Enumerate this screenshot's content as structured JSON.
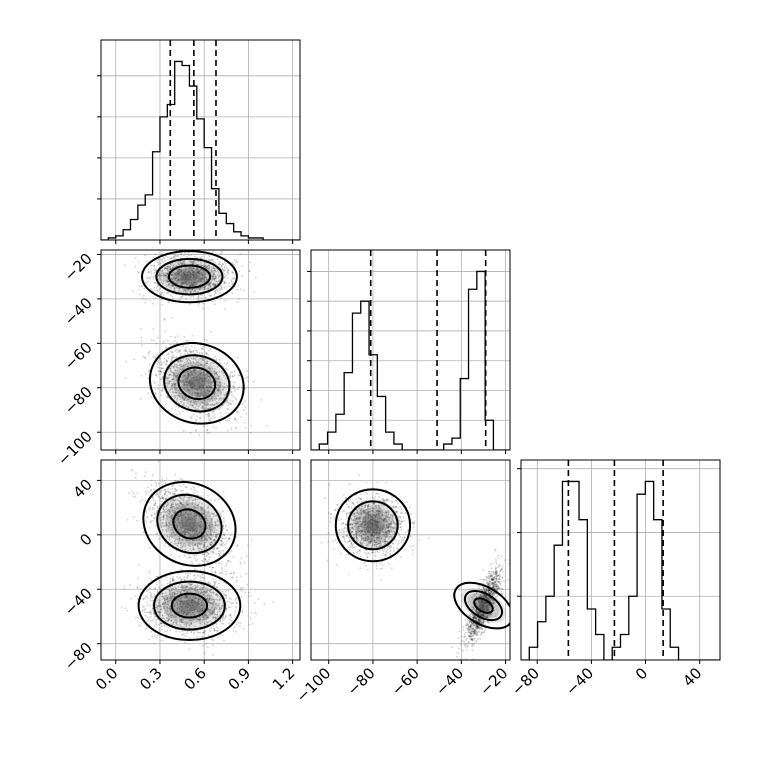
{
  "chart_data": {
    "type": "corner",
    "title": "",
    "grid": true,
    "parameters": [
      {
        "axis_label": "",
        "range": [
          -0.1,
          1.25
        ],
        "ticks": [
          0.0,
          0.3,
          0.6,
          0.9,
          1.2
        ],
        "tick_labels": [
          "0.0",
          "0.3",
          "0.6",
          "0.9",
          "1.2"
        ],
        "quantiles": [
          0.37,
          0.53,
          0.68
        ],
        "histogram": {
          "bin_start": -0.1,
          "bin_width": 0.05,
          "counts": [
            0,
            1,
            2,
            5,
            10,
            17,
            22,
            43,
            60,
            66,
            87,
            85,
            75,
            59,
            45,
            25,
            13,
            8,
            4,
            2,
            1,
            1,
            0,
            0,
            0,
            0,
            0
          ]
        }
      },
      {
        "axis_label": "",
        "range": [
          -108,
          -18
        ],
        "ticks": [
          -100,
          -80,
          -60,
          -40,
          -20
        ],
        "tick_labels": [
          "−100",
          "−80",
          "−60",
          "−40",
          "−20"
        ],
        "quantiles": [
          -81,
          -51,
          -29
        ],
        "histogram": {
          "bin_start": -108,
          "bin_width": 3.75,
          "counts": [
            0,
            1,
            3,
            6,
            13,
            23,
            25,
            16,
            9,
            3,
            1,
            0,
            0,
            0,
            0,
            0,
            1,
            2,
            12,
            27,
            30,
            5,
            0,
            0
          ]
        }
      },
      {
        "axis_label": "",
        "range": [
          -92,
          55
        ],
        "ticks": [
          -80,
          -40,
          0,
          40
        ],
        "tick_labels": [
          "−80",
          "−40",
          "0",
          "40"
        ],
        "quantiles": [
          -57,
          -23,
          13
        ],
        "histogram": {
          "bin_start": -92,
          "bin_width": 6.125,
          "counts": [
            0,
            1,
            3,
            5,
            9,
            14,
            14,
            11,
            4,
            2,
            0,
            1,
            2,
            5,
            13,
            14,
            11,
            4,
            1,
            0,
            0,
            0,
            0,
            0
          ]
        }
      }
    ],
    "pairs": [
      {
        "x_param": 0,
        "y_param": 1,
        "clusters": [
          {
            "mean": [
              0.5,
              -30
            ],
            "sd": [
              0.14,
              5
            ],
            "rho": 0.0,
            "contour_scale": [
              1.0,
              1.6,
              2.3
            ]
          },
          {
            "mean": [
              0.55,
              -78
            ],
            "sd": [
              0.14,
              8
            ],
            "rho": -0.35,
            "contour_scale": [
              0.9,
              1.6,
              2.3
            ]
          }
        ]
      },
      {
        "x_param": 0,
        "y_param": 2,
        "clusters": [
          {
            "mean": [
              0.5,
              8
            ],
            "sd": [
              0.14,
              14
            ],
            "rho": -0.55,
            "contour_scale": [
              0.8,
              1.6,
              2.3
            ]
          },
          {
            "mean": [
              0.5,
              -52
            ],
            "sd": [
              0.15,
              11
            ],
            "rho": 0.0,
            "contour_scale": [
              0.8,
              1.6,
              2.3
            ]
          }
        ]
      },
      {
        "x_param": 1,
        "y_param": 2,
        "clusters": [
          {
            "mean": [
              -80,
              7
            ],
            "sd": [
              7,
              11
            ],
            "rho": 0.0,
            "contour_scale": [
              1.6,
              2.4
            ]
          },
          {
            "mean": [
              -30,
              -52
            ],
            "sd": [
              3.8,
              13
            ],
            "rho": 0.8,
            "contour_scale": [
              0.7,
              1.4,
              2.2
            ]
          }
        ]
      }
    ]
  }
}
